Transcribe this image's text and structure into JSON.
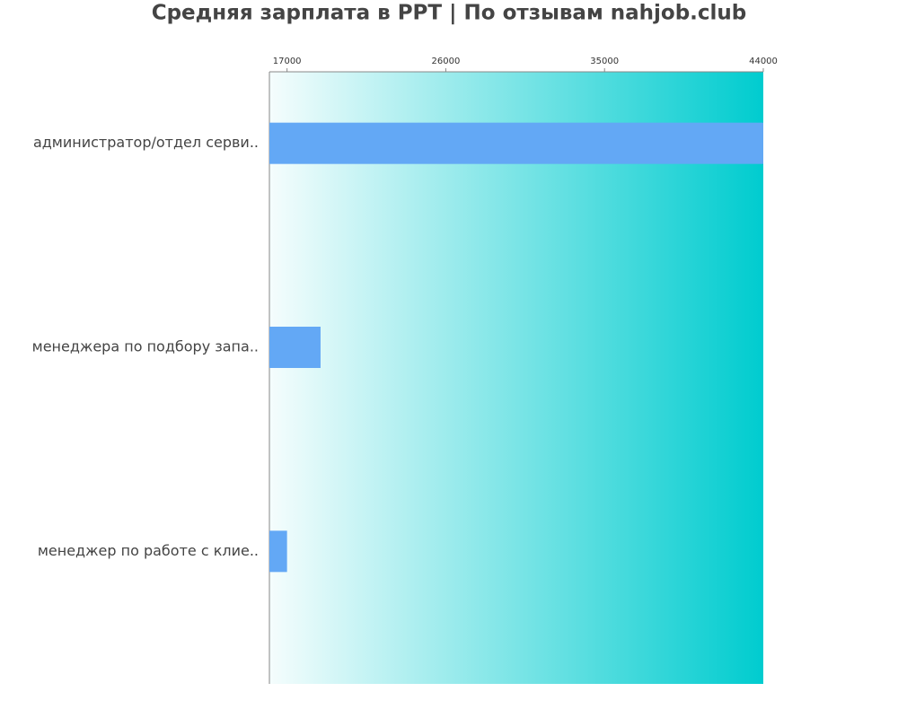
{
  "chart_data": {
    "type": "bar",
    "orientation": "horizontal",
    "title": "Средняя зарплата в PPT | По отзывам nahjob.club",
    "categories": [
      "администратор/отдел серви..",
      "менеджера по подбору запа..",
      "менеджер по работе с клие.."
    ],
    "values": [
      44000,
      18900,
      17000
    ],
    "color": "#63a8f5",
    "xlim": [
      16000,
      44000
    ],
    "xticks": [
      17000,
      26000,
      35000,
      44000
    ]
  }
}
